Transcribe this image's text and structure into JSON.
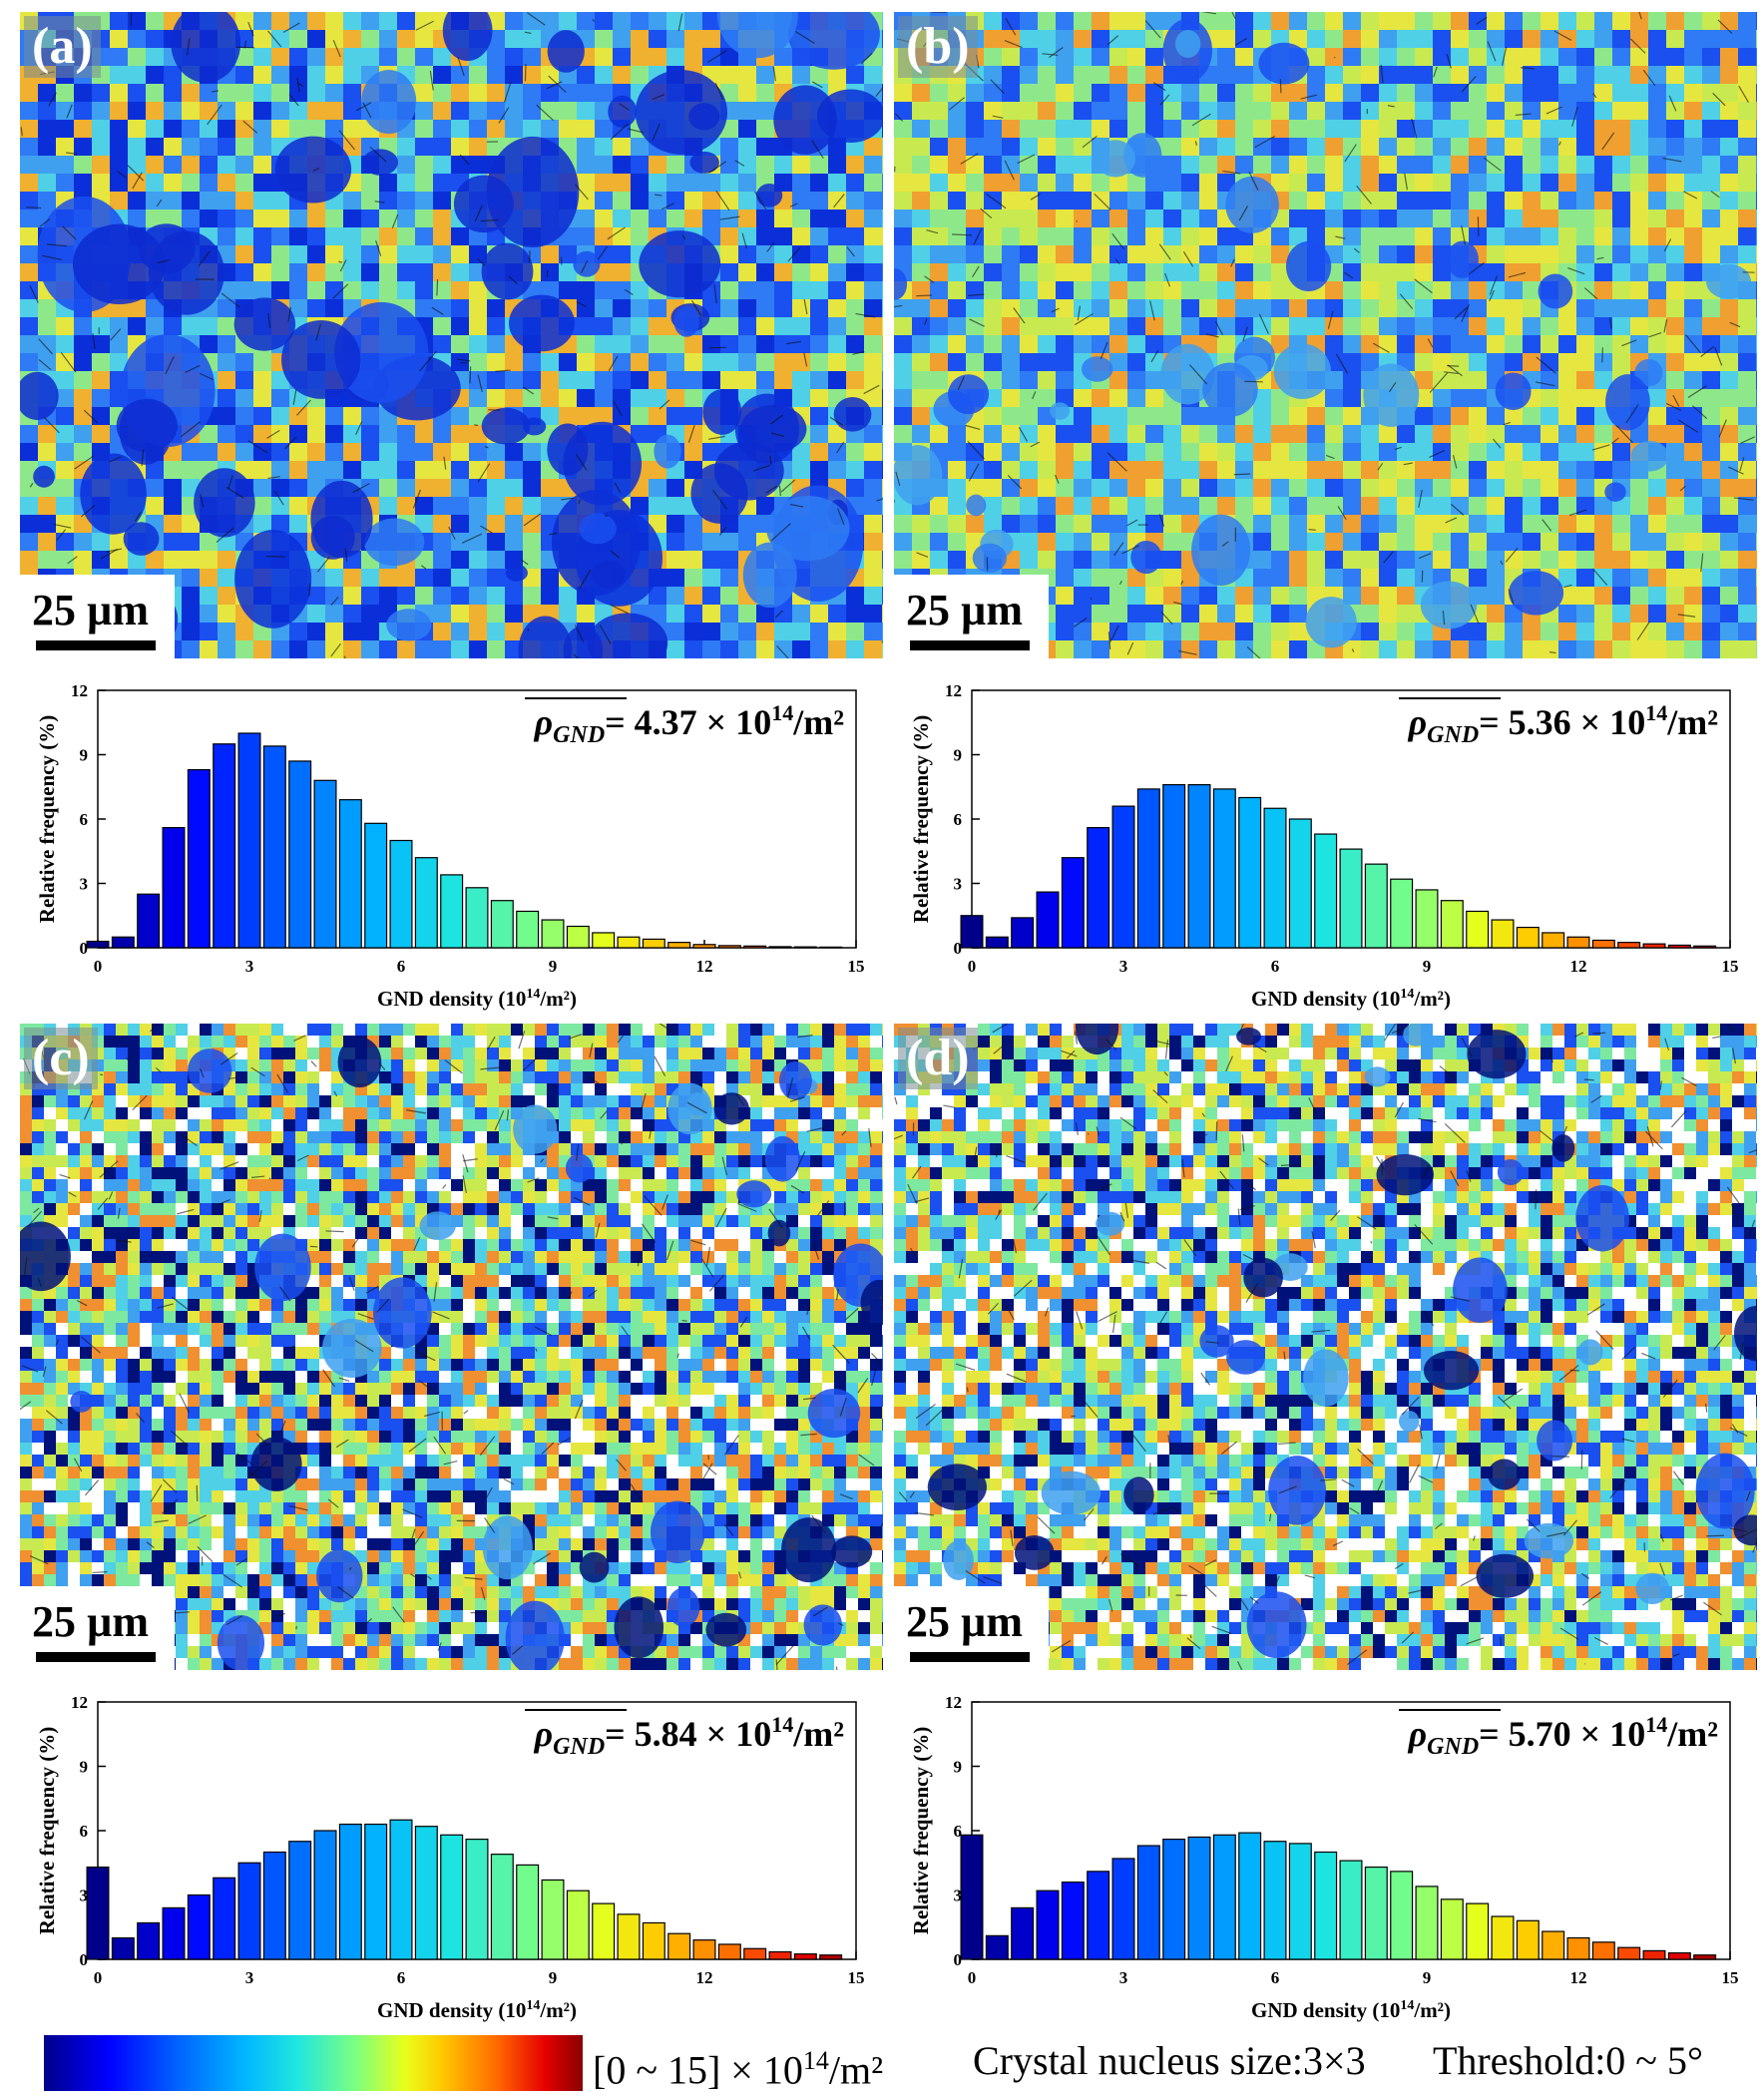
{
  "panels": [
    {
      "id": "a",
      "label": "(a)",
      "scale_bar": "25 µm",
      "map_colors": [
        "#0a2fd8",
        "#1a4ff0",
        "#2e7bf5",
        "#3fa0f0",
        "#4fd0e6",
        "#8ee88a",
        "#e6e640",
        "#f0b030"
      ],
      "chart_data": {
        "type": "bar",
        "title": "ρGND = 4.37 × 10¹⁴/m²",
        "mean_label": "ρ",
        "mean_sub": "GND",
        "mean_value": "= 4.37",
        "mean_unit": "× 10",
        "mean_exp": "14",
        "mean_tail": "/m²",
        "xlabel": "GND density (10",
        "xlabel_exp": "14",
        "xlabel_tail": "/m²)",
        "ylabel": "Relative frequency (%)",
        "xlim": [
          0,
          15
        ],
        "ylim": [
          0,
          12
        ],
        "xticks": [
          "0",
          "3",
          "6",
          "9",
          "12",
          "15"
        ],
        "yticks": [
          "0",
          "3",
          "6",
          "9",
          "12"
        ],
        "x": [
          0,
          0.5,
          1,
          1.5,
          2,
          2.5,
          3,
          3.5,
          4,
          4.5,
          5,
          5.5,
          6,
          6.5,
          7,
          7.5,
          8,
          8.5,
          9,
          9.5,
          10,
          10.5,
          11,
          11.5,
          12,
          12.5,
          13,
          13.5,
          14,
          14.5
        ],
        "values": [
          0.3,
          0.5,
          2.5,
          5.6,
          8.3,
          9.5,
          10.0,
          9.4,
          8.7,
          7.8,
          6.9,
          5.8,
          5.0,
          4.2,
          3.4,
          2.8,
          2.2,
          1.7,
          1.3,
          1.0,
          0.7,
          0.5,
          0.4,
          0.25,
          0.15,
          0.1,
          0.08,
          0.05,
          0.04,
          0.03
        ]
      }
    },
    {
      "id": "b",
      "label": "(b)",
      "scale_bar": "25 µm",
      "map_colors": [
        "#1a4ff0",
        "#2e7bf5",
        "#3fa0f0",
        "#4fd0e6",
        "#8ee88a",
        "#c8ea50",
        "#e6e640",
        "#f0a030"
      ],
      "chart_data": {
        "type": "bar",
        "title": "ρGND = 5.36 × 10¹⁴/m²",
        "mean_label": "ρ",
        "mean_sub": "GND",
        "mean_value": "= 5.36",
        "mean_unit": "× 10",
        "mean_exp": "14",
        "mean_tail": "/m²",
        "xlabel": "GND density (10",
        "xlabel_exp": "14",
        "xlabel_tail": "/m²)",
        "ylabel": "Relative frequency (%)",
        "xlim": [
          0,
          15
        ],
        "ylim": [
          0,
          12
        ],
        "xticks": [
          "0",
          "3",
          "6",
          "9",
          "12",
          "15"
        ],
        "yticks": [
          "0",
          "3",
          "6",
          "9",
          "12"
        ],
        "x": [
          0,
          0.5,
          1,
          1.5,
          2,
          2.5,
          3,
          3.5,
          4,
          4.5,
          5,
          5.5,
          6,
          6.5,
          7,
          7.5,
          8,
          8.5,
          9,
          9.5,
          10,
          10.5,
          11,
          11.5,
          12,
          12.5,
          13,
          13.5,
          14,
          14.5
        ],
        "values": [
          1.5,
          0.5,
          1.4,
          2.6,
          4.2,
          5.6,
          6.6,
          7.4,
          7.6,
          7.6,
          7.4,
          7.0,
          6.5,
          6.0,
          5.3,
          4.6,
          3.9,
          3.2,
          2.7,
          2.2,
          1.7,
          1.3,
          0.95,
          0.7,
          0.5,
          0.35,
          0.25,
          0.18,
          0.12,
          0.08
        ]
      }
    },
    {
      "id": "c",
      "label": "(c)",
      "scale_bar": "25 µm",
      "map_colors": [
        "#00127a",
        "#1a4ff0",
        "#3fa0f0",
        "#4fd0e6",
        "#7de8a0",
        "#c8ea50",
        "#e6e640",
        "#f09030",
        "#ffffff"
      ],
      "chart_data": {
        "type": "bar",
        "title": "ρGND = 5.84 × 10¹⁴/m²",
        "mean_label": "ρ",
        "mean_sub": "GND",
        "mean_value": "= 5.84",
        "mean_unit": "× 10",
        "mean_exp": "14",
        "mean_tail": "/m²",
        "xlabel": "GND density (10",
        "xlabel_exp": "14",
        "xlabel_tail": "/m²)",
        "ylabel": "Relative frequency (%)",
        "xlim": [
          0,
          15
        ],
        "ylim": [
          0,
          12
        ],
        "xticks": [
          "0",
          "3",
          "6",
          "9",
          "12",
          "15"
        ],
        "yticks": [
          "0",
          "3",
          "6",
          "9",
          "12"
        ],
        "x": [
          0,
          0.5,
          1,
          1.5,
          2,
          2.5,
          3,
          3.5,
          4,
          4.5,
          5,
          5.5,
          6,
          6.5,
          7,
          7.5,
          8,
          8.5,
          9,
          9.5,
          10,
          10.5,
          11,
          11.5,
          12,
          12.5,
          13,
          13.5,
          14,
          14.5
        ],
        "values": [
          4.3,
          1.0,
          1.7,
          2.4,
          3.0,
          3.8,
          4.5,
          5.0,
          5.5,
          6.0,
          6.3,
          6.3,
          6.5,
          6.2,
          5.8,
          5.6,
          4.9,
          4.4,
          3.7,
          3.2,
          2.6,
          2.1,
          1.7,
          1.2,
          0.9,
          0.7,
          0.5,
          0.35,
          0.25,
          0.2
        ]
      }
    },
    {
      "id": "d",
      "label": "(d)",
      "scale_bar": "25 µm",
      "map_colors": [
        "#00127a",
        "#1a4ff0",
        "#3fa0f0",
        "#4fd0e6",
        "#7de8a0",
        "#c8ea50",
        "#e6e640",
        "#f09030",
        "#ffffff",
        "#ffffff"
      ],
      "chart_data": {
        "type": "bar",
        "title": "ρGND = 5.70 × 10¹⁴/m²",
        "mean_label": "ρ",
        "mean_sub": "GND",
        "mean_value": "= 5.70",
        "mean_unit": "× 10",
        "mean_exp": "14",
        "mean_tail": "/m²",
        "xlabel": "GND density (10",
        "xlabel_exp": "14",
        "xlabel_tail": "/m²)",
        "ylabel": "Relative frequency (%)",
        "xlim": [
          0,
          15
        ],
        "ylim": [
          0,
          12
        ],
        "xticks": [
          "0",
          "3",
          "6",
          "9",
          "12",
          "15"
        ],
        "yticks": [
          "0",
          "3",
          "6",
          "9",
          "12"
        ],
        "x": [
          0,
          0.5,
          1,
          1.5,
          2,
          2.5,
          3,
          3.5,
          4,
          4.5,
          5,
          5.5,
          6,
          6.5,
          7,
          7.5,
          8,
          8.5,
          9,
          9.5,
          10,
          10.5,
          11,
          11.5,
          12,
          12.5,
          13,
          13.5,
          14,
          14.5
        ],
        "values": [
          5.8,
          1.1,
          2.4,
          3.2,
          3.6,
          4.1,
          4.7,
          5.3,
          5.6,
          5.7,
          5.8,
          5.9,
          5.5,
          5.4,
          5.0,
          4.6,
          4.3,
          4.1,
          3.4,
          2.8,
          2.6,
          2.0,
          1.8,
          1.3,
          1.0,
          0.8,
          0.55,
          0.4,
          0.3,
          0.2
        ]
      }
    }
  ],
  "colorbar": {
    "range_text": "[0  ~  15] × 10",
    "range_exp": "14",
    "range_tail": "/m²",
    "nucleus_text": "Crystal nucleus size:3×3",
    "threshold_text": "Threshold:0 ~ 5°"
  }
}
